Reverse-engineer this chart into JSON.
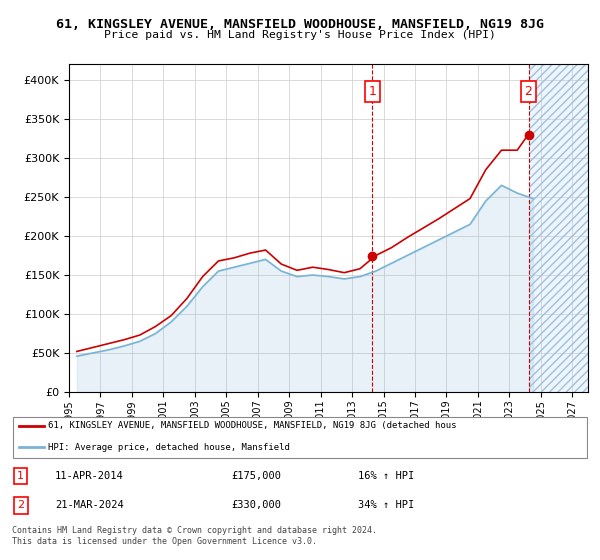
{
  "title": "61, KINGSLEY AVENUE, MANSFIELD WOODHOUSE, MANSFIELD, NG19 8JG",
  "subtitle": "Price paid vs. HM Land Registry's House Price Index (HPI)",
  "ylim": [
    0,
    420000
  ],
  "yticks": [
    0,
    50000,
    100000,
    150000,
    200000,
    250000,
    300000,
    350000,
    400000
  ],
  "xlim_start": 1995,
  "xlim_end": 2028,
  "legend_line1": "61, KINGSLEY AVENUE, MANSFIELD WOODHOUSE, MANSFIELD, NG19 8JG (detached hous",
  "legend_line2": "HPI: Average price, detached house, Mansfield",
  "marker1_date": "11-APR-2014",
  "marker1_price": "£175,000",
  "marker1_pct": "16% ↑ HPI",
  "marker1_x": 2014.28,
  "marker1_y": 175000,
  "marker2_date": "21-MAR-2024",
  "marker2_price": "£330,000",
  "marker2_pct": "34% ↑ HPI",
  "marker2_x": 2024.22,
  "marker2_y": 330000,
  "red_line_color": "#cc0000",
  "blue_line_color": "#7ab4d4",
  "grid_color": "#cccccc",
  "background_color": "#ffffff",
  "plot_bg_color": "#ffffff",
  "footnote": "Contains HM Land Registry data © Crown copyright and database right 2024.\nThis data is licensed under the Open Government Licence v3.0.",
  "hpi_years": [
    1995.5,
    1996.5,
    1997.5,
    1998.5,
    1999.5,
    2000.5,
    2001.5,
    2002.5,
    2003.5,
    2004.5,
    2005.5,
    2006.5,
    2007.5,
    2008.5,
    2009.5,
    2010.5,
    2011.5,
    2012.5,
    2013.5,
    2014.5,
    2015.5,
    2016.5,
    2017.5,
    2018.5,
    2019.5,
    2020.5,
    2021.5,
    2022.5,
    2023.5,
    2024.5
  ],
  "hpi_values": [
    46000,
    50000,
    54000,
    59000,
    65000,
    75000,
    90000,
    110000,
    135000,
    155000,
    160000,
    165000,
    170000,
    155000,
    148000,
    150000,
    148000,
    145000,
    148000,
    155000,
    165000,
    175000,
    185000,
    195000,
    205000,
    215000,
    245000,
    265000,
    255000,
    248000
  ],
  "red_years": [
    1995.5,
    1996.5,
    1997.5,
    1998.5,
    1999.5,
    2000.5,
    2001.5,
    2002.5,
    2003.5,
    2004.5,
    2005.5,
    2006.5,
    2007.5,
    2008.5,
    2009.5,
    2010.5,
    2011.5,
    2012.5,
    2013.5,
    2014.5,
    2015.5,
    2016.5,
    2017.5,
    2018.5,
    2019.5,
    2020.5,
    2021.5,
    2022.5,
    2023.5,
    2024.2
  ],
  "red_values": [
    52000,
    57000,
    62000,
    67000,
    73000,
    84000,
    98000,
    120000,
    148000,
    168000,
    172000,
    178000,
    182000,
    164000,
    156000,
    160000,
    157000,
    153000,
    158000,
    175000,
    185000,
    198000,
    210000,
    222000,
    235000,
    248000,
    285000,
    310000,
    310000,
    330000
  ]
}
